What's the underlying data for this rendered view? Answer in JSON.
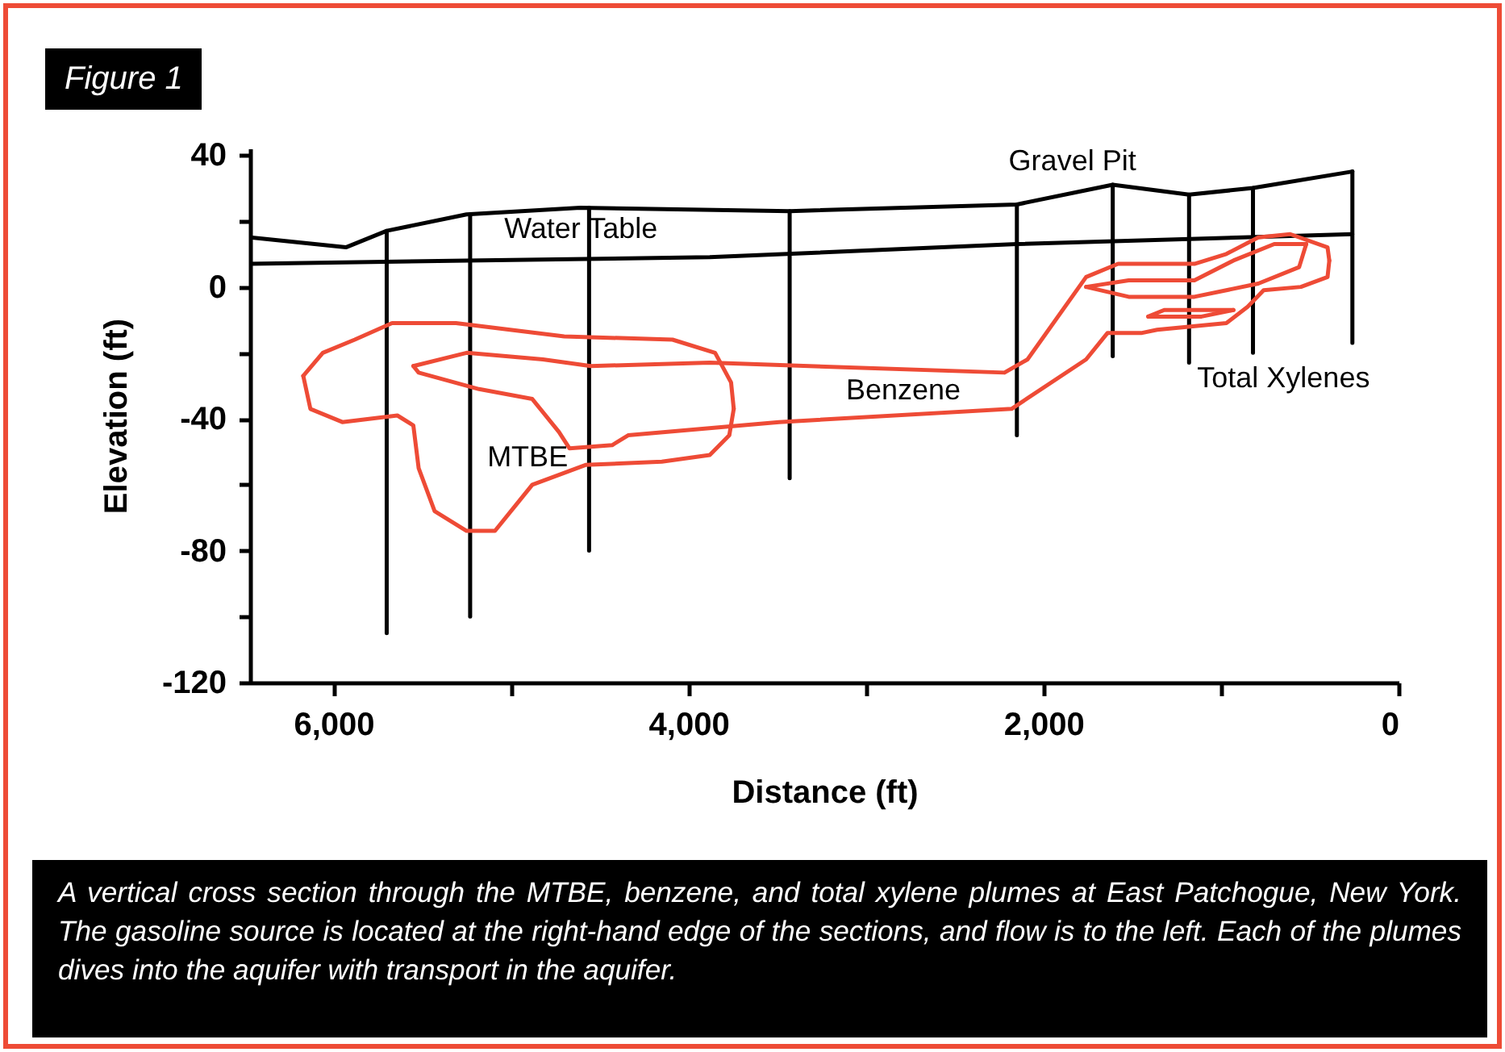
{
  "chart_data": {
    "type": "line",
    "title": "Figure 1",
    "xlabel": "Distance (ft)",
    "ylabel": "Elevation (ft)",
    "xlim": [
      6470,
      0
    ],
    "ylim": [
      -120,
      42
    ],
    "xticks": [
      {
        "value": 6000,
        "label": "6,000"
      },
      {
        "value": 5000,
        "label": null
      },
      {
        "value": 4000,
        "label": "4,000"
      },
      {
        "value": 3000,
        "label": null
      },
      {
        "value": 2000,
        "label": "2,000"
      },
      {
        "value": 1000,
        "label": null
      },
      0
    ],
    "yticks": [
      40,
      {
        "value": 20,
        "label": null
      },
      0,
      {
        "value": -20,
        "label": null
      },
      -40,
      {
        "value": -60,
        "label": null
      },
      -80,
      {
        "value": -100,
        "label": null
      },
      -120
    ],
    "series": [
      {
        "color": "#000000",
        "x": [
          6470,
          5930,
          5700,
          5250,
          4610,
          3430,
          2150,
          1610,
          1180,
          820,
          260
        ],
        "values": [
          15,
          12,
          17,
          22,
          24,
          23,
          25,
          31,
          28,
          30,
          35
        ]
      },
      {
        "color": "#000000",
        "x": [
          6470,
          5250,
          3880,
          2150,
          260
        ],
        "values": [
          7,
          8,
          9,
          13,
          16
        ]
      },
      {
        "color": "#000000",
        "x": [
          5700,
          5700,
          null,
          5230,
          5230,
          null,
          4560,
          4560,
          null,
          3430,
          3430,
          null,
          2150,
          2150,
          null,
          1610,
          1610,
          null,
          1180,
          1180,
          null,
          820,
          820,
          null,
          260,
          260
        ],
        "values": [
          17,
          -105,
          null,
          22,
          -100,
          null,
          24,
          -80,
          null,
          23,
          -58,
          null,
          25,
          -45,
          null,
          31,
          -21,
          null,
          28,
          -23,
          null,
          30,
          -20,
          null,
          35,
          -17
        ]
      },
      {
        "color": "#ee4b36",
        "x": [
          6170,
          6060,
          5880,
          5670,
          5310,
          4700,
          4090,
          3850,
          3760,
          3745,
          null,
          3745,
          3770,
          3880,
          4150,
          4580,
          4880,
          4970,
          5090,
          5250,
          5430,
          5520,
          5550,
          5640,
          5950,
          6130,
          6170
        ],
        "values": [
          -27,
          -20,
          -16,
          -11,
          -11,
          -15,
          -16,
          -20,
          -29,
          -37,
          null,
          -37,
          -45,
          -51,
          -53,
          -54,
          -60,
          -66,
          -74,
          -74,
          -68,
          -55,
          -42,
          -39,
          -41,
          -37,
          -27
        ]
      },
      {
        "color": "#ee4b36",
        "x": [
          5550,
          5250,
          4820,
          4550,
          3880,
          2220,
          2090,
          1760,
          1580,
          1150,
          970,
          790,
          610,
          400,
          390,
          null,
          390,
          400,
          550,
          760,
          850,
          970,
          1360,
          1450,
          1640,
          1760,
          2180,
          3490,
          4340,
          4430,
          4670,
          4730,
          4880,
          5180,
          5520,
          5550
        ],
        "values": [
          -24,
          -20,
          -22,
          -24,
          -23,
          -26,
          -22,
          3,
          7,
          7,
          10,
          15,
          16,
          12,
          8,
          null,
          8,
          3,
          0,
          -1,
          -6,
          -11,
          -13,
          -14,
          -14,
          -22,
          -37,
          -41,
          -45,
          -48,
          -49,
          -44,
          -34,
          -31,
          -26,
          -24
        ]
      },
      {
        "color": "#ee4b36",
        "x": [
          1760,
          1520,
          1150,
          930,
          700,
          520,
          null,
          520,
          560,
          790,
          1150,
          1520,
          1760
        ],
        "values": [
          0,
          2,
          2,
          8,
          13,
          13,
          null,
          13,
          6,
          1,
          -3,
          -3,
          0
        ]
      },
      {
        "color": "#ee4b36",
        "x": [
          1410,
          1320,
          930,
          null,
          930,
          1110,
          1410
        ],
        "values": [
          -9,
          -7,
          -7,
          null,
          -7,
          -9,
          -9
        ]
      }
    ],
    "annotations": [
      {
        "text": "Gravel Pit",
        "x": 1610,
        "y": 31
      },
      {
        "text": "Water Table",
        "x": 4570,
        "y": 8.5
      },
      {
        "text": "Benzene",
        "x": 2790,
        "y": -39
      },
      {
        "text": "MTBE",
        "x": 4670,
        "y": -49
      },
      {
        "text": "Total Xylenes",
        "x": 1180,
        "y": -23
      },
      "A vertical cross section through the MTBE, benzene, and total xylene plumes at East Patchogue, New York. The gasoline source is located at the right-hand edge of the sections, and flow is to the left. Each of the plumes dives into the aquifer with transport in the aquifer."
    ]
  }
}
